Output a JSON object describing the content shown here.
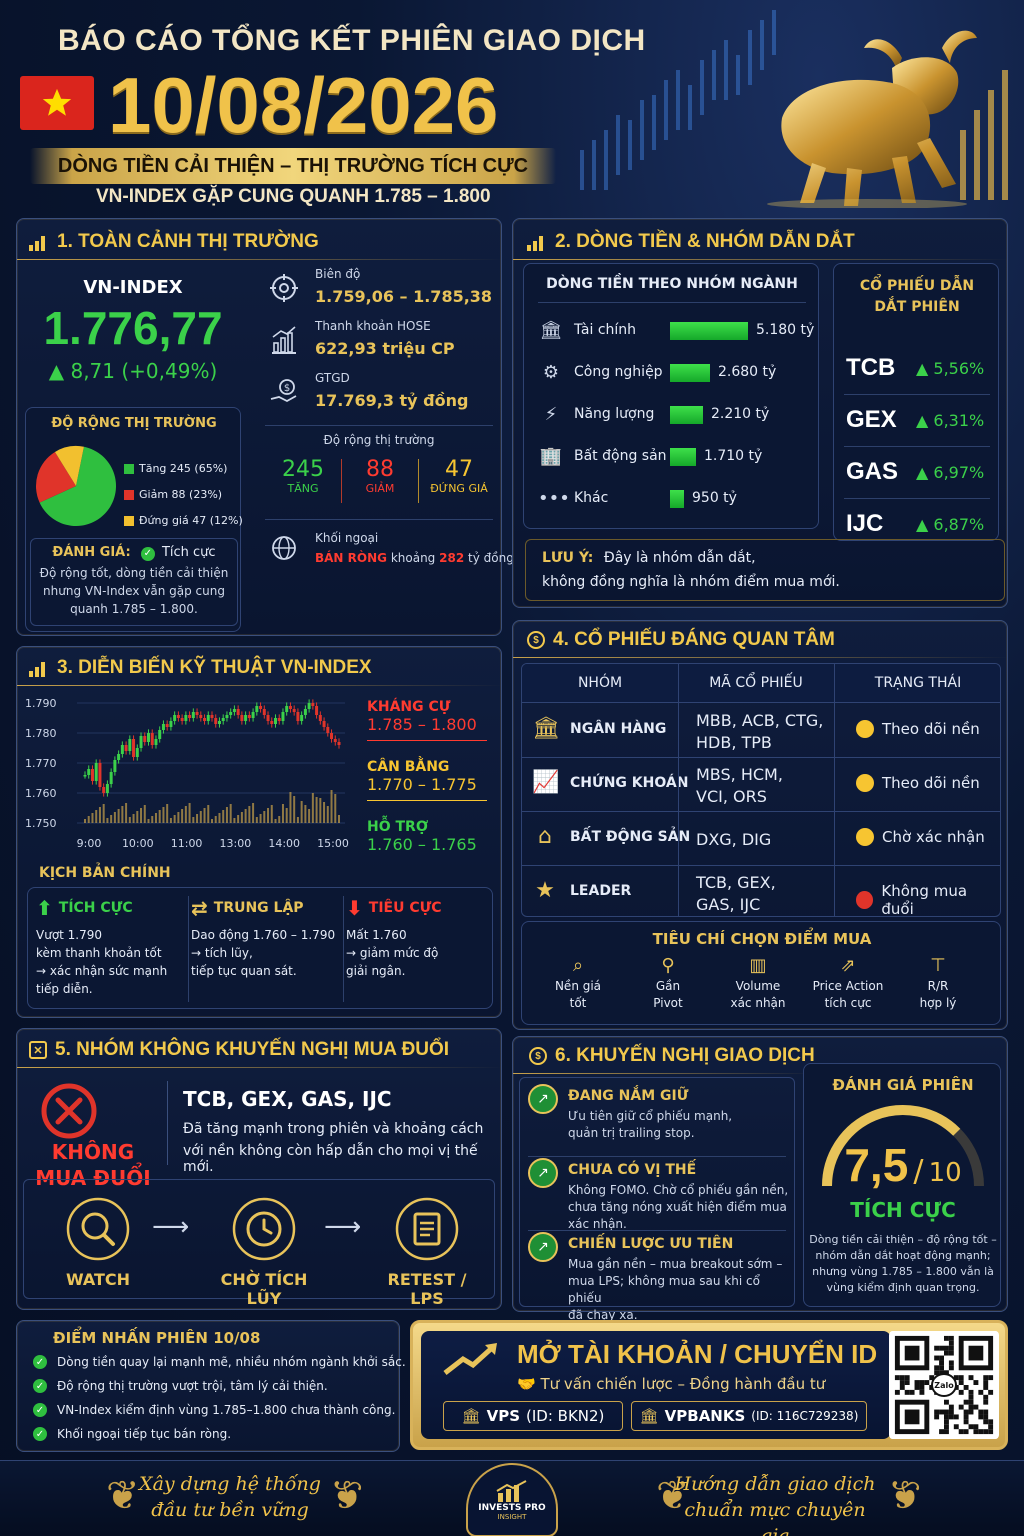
{
  "header": {
    "title": "BÁO CÁO TỔNG KẾT PHIÊN GIAO DỊCH",
    "date": "10/08/2026",
    "banner": "DÒNG TIỀN CẢI THIỆN – THỊ TRƯỜNG TÍCH CỰC",
    "subtitle": "VN-INDEX GẶP CUNG QUANH 1.785 – 1.800"
  },
  "s1": {
    "title": "1. TOÀN CẢNH THỊ TRƯỜNG",
    "index_label": "VN-INDEX",
    "index_value": "1.776,77",
    "index_change": "▲ 8,71 (+0,49%)",
    "breadth_title": "Độ rộng thị trường",
    "pie": [
      {
        "label": "Tăng 245 (65%)",
        "value": 65,
        "color": "#2fbf3f"
      },
      {
        "label": "Giảm 88 (23%)",
        "value": 23,
        "color": "#e0342a"
      },
      {
        "label": "Đứng giá 47 (12%)",
        "value": 12,
        "color": "#f2c02f"
      }
    ],
    "eval_label": "ĐÁNH GIÁ:",
    "eval_value": "Tích cực",
    "eval_text": "Độ rộng tốt, dòng tiền cải thiện nhưng VN-Index vẫn gặp cung quanh 1.785 – 1.800.",
    "range_label": "Biên độ",
    "range_value": "1.759,06 – 1.785,38",
    "liq_label": "Thanh khoản HOSE",
    "liq_value": "622,93 triệu CP",
    "gtgd_label": "GTGD",
    "gtgd_value": "17.769,3 tỷ đồng",
    "breadth2_label": "Độ rộng thị trường",
    "up_num": "245",
    "up_label": "TĂNG",
    "down_num": "88",
    "down_label": "GIẢM",
    "flat_num": "47",
    "flat_label": "ĐỨNG GIÁ",
    "foreign_label": "Khối ngoại",
    "foreign_prefix": "BÁN RÒNG",
    "foreign_mid": "khoảng",
    "foreign_amount": "282",
    "foreign_unit": "tỷ đồng"
  },
  "s2": {
    "title": "2. DÒNG TIỀN & NHÓM DẪN DẮT",
    "flow_title": "DÒNG TIỀN THEO NHÓM NGÀNH",
    "flows": [
      {
        "name": "Tài chính",
        "value": 5180,
        "label": "5.180 tỷ",
        "icon": "bank-icon"
      },
      {
        "name": "Công nghiệp",
        "value": 2680,
        "label": "2.680 tỷ",
        "icon": "gear-icon"
      },
      {
        "name": "Năng lượng",
        "value": 2210,
        "label": "2.210 tỷ",
        "icon": "bolt-icon"
      },
      {
        "name": "Bất động sản",
        "value": 1710,
        "label": "1.710 tỷ",
        "icon": "building-icon"
      },
      {
        "name": "Khác",
        "value": 950,
        "label": "950 tỷ",
        "icon": "dots-icon"
      }
    ],
    "leaders_title": "CỔ PHIẾU DẪN DẮT PHIÊN",
    "leaders": [
      {
        "code": "TCB",
        "change": "▲ 5,56%"
      },
      {
        "code": "GEX",
        "change": "▲ 6,31%"
      },
      {
        "code": "GAS",
        "change": "▲ 6,97%"
      },
      {
        "code": "IJC",
        "change": "▲ 6,87%"
      }
    ],
    "note_label": "LƯU Ý:",
    "note_text1": "Đây là nhóm dẫn dắt,",
    "note_text2": "không đồng nghĩa là nhóm điểm mua mới."
  },
  "s3": {
    "title": "3. DIỄN BIẾN KỸ THUẬT VN-INDEX",
    "y_ticks": [
      "1.790",
      "1.780",
      "1.770",
      "1.760",
      "1.750"
    ],
    "x_ticks": [
      "9:00",
      "10:00",
      "11:00",
      "13:00",
      "14:00",
      "15:00"
    ],
    "resist_label": "KHÁNG CỰ",
    "resist_value": "1.785 – 1.800",
    "balance_label": "CÂN BẰNG",
    "balance_value": "1.770 – 1.775",
    "support_label": "HỖ TRỢ",
    "support_value": "1.760 – 1.765",
    "scen_title": "KỊCH BẢN CHÍNH",
    "scenarios": [
      {
        "title": "TÍCH CỰC",
        "l1": "Vượt 1.790",
        "l2": "kèm thanh khoản tốt",
        "l3": "→ xác nhận sức mạnh",
        "l4": "tiếp diễn."
      },
      {
        "title": "TRUNG LẬP",
        "l1": "Dao động 1.760 – 1.790",
        "l2": "→ tích lũy,",
        "l3": "tiếp tục quan sát.",
        "l4": ""
      },
      {
        "title": "TIÊU CỰC",
        "l1": "Mất 1.760",
        "l2": "→ giảm mức độ",
        "l3": "giải ngân.",
        "l4": ""
      }
    ]
  },
  "s4": {
    "title": "4. CỔ PHIẾU ĐÁNG QUAN TÂM",
    "headers": [
      "NHÓM",
      "MÃ CỔ PHIẾU",
      "TRẠNG THÁI"
    ],
    "rows": [
      {
        "group": "NGÂN HÀNG",
        "codes1": "MBB, ACB, CTG,",
        "codes2": "HDB, TPB",
        "status": "Theo dõi nền",
        "color": "#f7c531",
        "icon": "bank-icon"
      },
      {
        "group": "CHỨNG KHOÁN",
        "codes1": "MBS, HCM,",
        "codes2": "VCI, ORS",
        "status": "Theo dõi nền",
        "color": "#f7c531",
        "icon": "chart-up-icon"
      },
      {
        "group": "BẤT ĐỘNG SẢN",
        "codes1": "DXG, DIG",
        "codes2": "",
        "status": "Chờ xác nhận",
        "color": "#f7c531",
        "icon": "house-icon"
      },
      {
        "group": "LEADER",
        "codes1": "TCB, GEX,",
        "codes2": "GAS, IJC",
        "status": "Không mua đuổi",
        "color": "#e0342a",
        "icon": "star-icon"
      }
    ],
    "criteria_title": "TIÊU CHÍ CHỌN ĐIỂM MUA",
    "criteria": [
      {
        "l1": "Nền giá",
        "l2": "tốt",
        "icon": "magnifier-icon"
      },
      {
        "l1": "Gần",
        "l2": "Pivot",
        "icon": "pivot-icon"
      },
      {
        "l1": "Volume",
        "l2": "xác nhận",
        "icon": "volume-icon"
      },
      {
        "l1": "Price Action",
        "l2": "tích cực",
        "icon": "price-action-icon"
      },
      {
        "l1": "R/R",
        "l2": "hợp lý",
        "icon": "rr-icon"
      }
    ]
  },
  "s5": {
    "title": "5. NHÓM KHÔNG KHUYẾN NGHỊ MUA ĐUỔI",
    "badge1": "KHÔNG",
    "badge2": "MUA ĐUỔI",
    "codes": "TCB, GEX, GAS, IJC",
    "desc1": "Đã tăng mạnh trong phiên và khoảng cách",
    "desc2": "với nền không còn hấp dẫn cho mọi vị thế mới.",
    "steps": [
      "WATCH",
      "CHỜ TÍCH LŨY",
      "RETEST / LPS"
    ]
  },
  "s6": {
    "title": "6. KHUYẾN NGHỊ GIAO DỊCH",
    "items": [
      {
        "title": "ĐANG NẮM GIỮ",
        "l1": "Ưu tiên giữ cổ phiếu mạnh,",
        "l2": "quản trị trailing stop.",
        "l3": ""
      },
      {
        "title": "CHƯA CÓ VỊ THẾ",
        "l1": "Không FOMO. Chờ cổ phiếu gần nền,",
        "l2": "chưa tăng nóng xuất hiện điểm mua",
        "l3": "xác nhận."
      },
      {
        "title": "CHIẾN LƯỢC ƯU TIÊN",
        "l1": "Mua gần nền – mua breakout sớm –",
        "l2": "mua LPS; không mua sau khi cổ phiếu",
        "l3": "đã chạy xa."
      }
    ],
    "score_title": "ĐÁNH GIÁ PHIÊN",
    "score": 7.5,
    "score_text": "7,5",
    "score_max": "10",
    "score_label": "TÍCH CỰC",
    "score_desc1": "Dòng tiền cải thiện – độ rộng tốt –",
    "score_desc2": "nhóm dẫn dắt hoạt động mạnh;",
    "score_desc3": "nhưng vùng 1.785 – 1.800 vẫn là",
    "score_desc4": "vùng kiểm định quan trọng."
  },
  "highlights": {
    "title": "ĐIỂM NHẤN PHIÊN 10/08",
    "items": [
      "Dòng tiền quay lại mạnh mẽ, nhiều nhóm ngành khởi sắc.",
      "Độ rộng thị trường vượt trội, tâm lý cải thiện.",
      "VN-Index kiểm định vùng 1.785–1.800 chưa thành công.",
      "Khối ngoại tiếp tục bán ròng."
    ]
  },
  "cta": {
    "title": "MỞ TÀI KHOẢN / CHUYỂN ID",
    "subtitle": "Tư vấn chiến lược – Đồng hành đầu tư",
    "vps": "VPS",
    "vps_id": "(ID: BKN2)",
    "vpbanks": "VPBANKS",
    "vpbanks_id": "(ID: 116C729238)",
    "qr_label": "Zalo"
  },
  "footer": {
    "left1": "Xây dựng hệ thống",
    "left2": "đầu tư bền vững",
    "brand1": "INVESTS PRO",
    "brand2": "INSIGHT",
    "right1": "Hướng dẫn giao dịch",
    "right2": "chuẩn mực chuyên gia"
  },
  "colors": {
    "gold": "#e8c35a",
    "green": "#3bd14a",
    "red": "#ff3b30",
    "navy": "#071229"
  }
}
